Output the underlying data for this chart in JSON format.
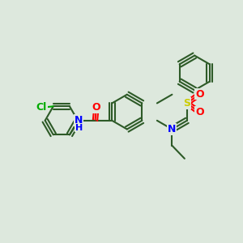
{
  "background_color": "#dde8dd",
  "bond_color": "#2d5a27",
  "bond_width": 1.5,
  "atom_colors": {
    "O": "#ff0000",
    "N": "#0000ff",
    "S": "#cccc00",
    "Cl": "#00aa00",
    "C": "#2d5a27"
  },
  "font_size": 9
}
